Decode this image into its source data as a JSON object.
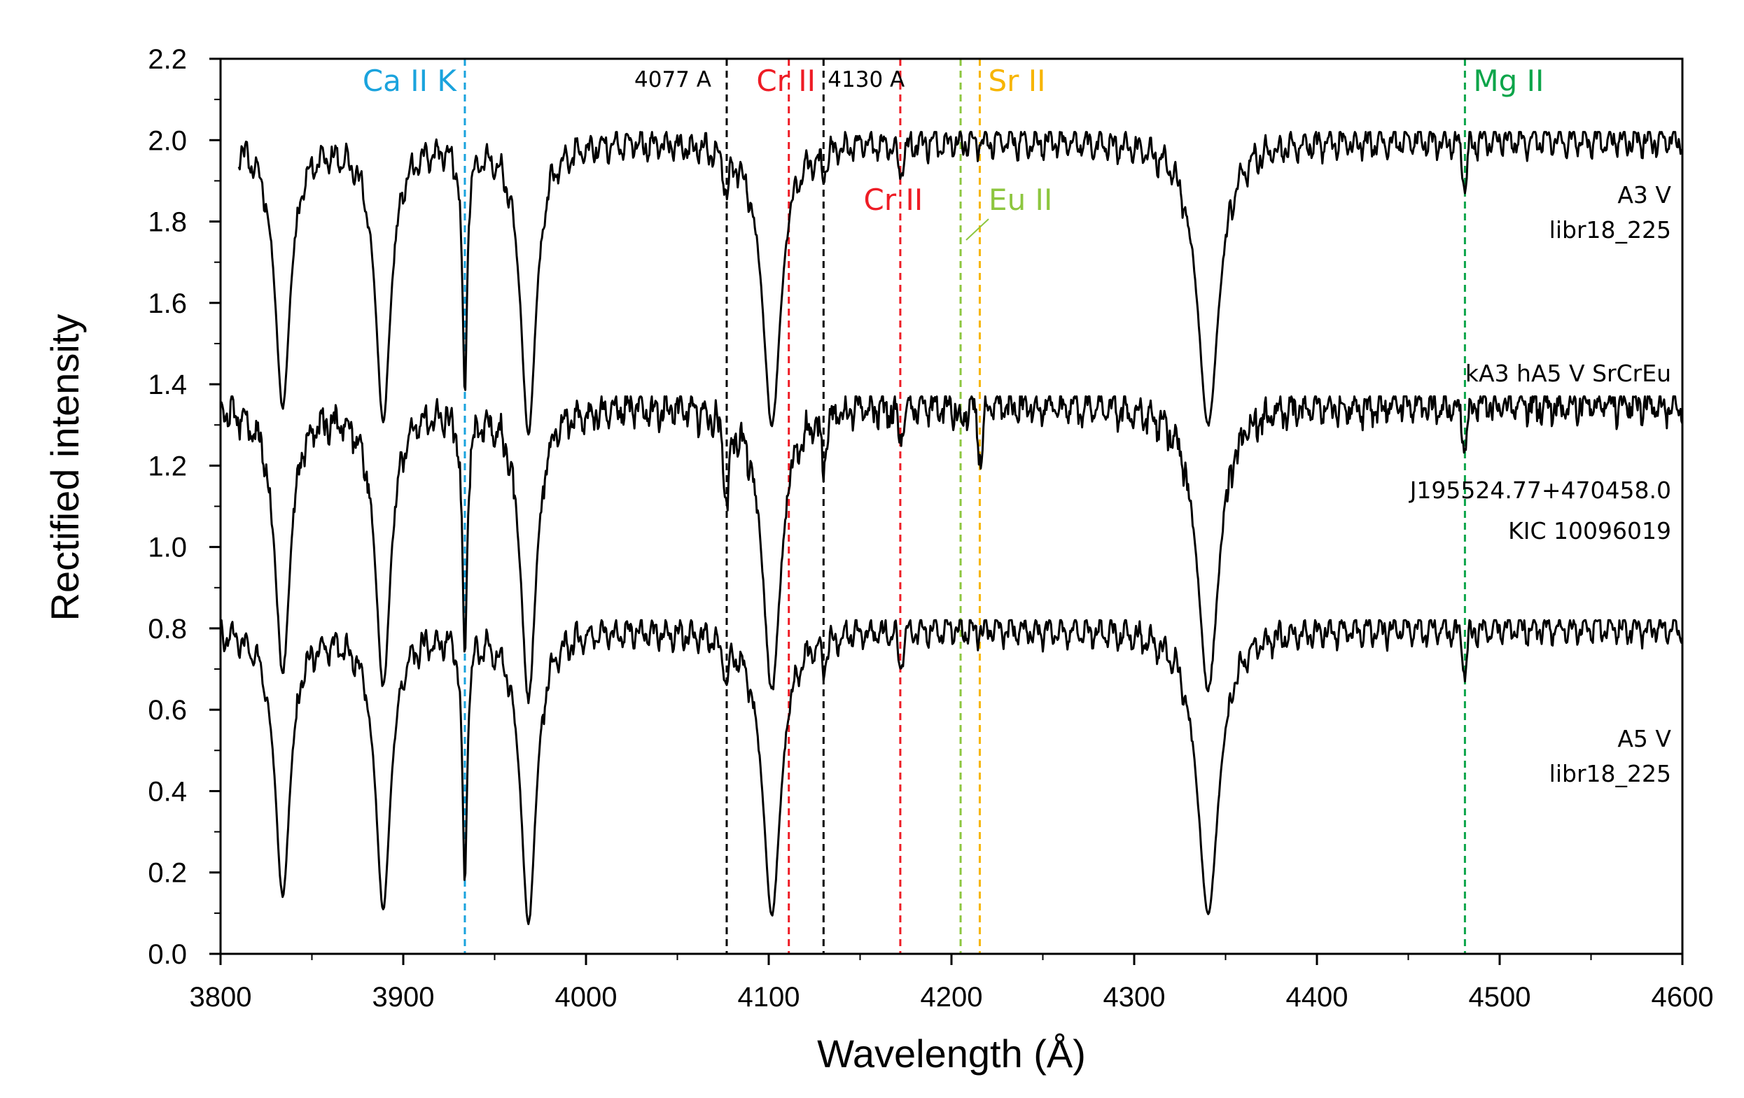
{
  "chart_data": {
    "type": "line",
    "xlabel": "Wavelength (Å)",
    "ylabel": "Rectified intensity",
    "xlim": [
      3800,
      4600
    ],
    "ylim": [
      0.0,
      2.2
    ],
    "x_ticks": [
      3800,
      3900,
      4000,
      4100,
      4200,
      4300,
      4400,
      4500,
      4600
    ],
    "x_tick_labels": [
      "3800",
      "3900",
      "4000",
      "4100",
      "4200",
      "4300",
      "4400",
      "4500",
      "4600"
    ],
    "y_ticks": [
      0.0,
      0.2,
      0.4,
      0.6,
      0.8,
      1.0,
      1.2,
      1.4,
      1.6,
      1.8,
      2.0,
      2.2
    ],
    "y_tick_labels": [
      "0.0",
      "0.2",
      "0.4",
      "0.6",
      "0.8",
      "1.0",
      "1.2",
      "1.4",
      "1.6",
      "1.8",
      "2.0",
      "2.2"
    ],
    "series": [
      {
        "name": "A3 V libr18_225",
        "offset": 1.2,
        "start": 3810
      },
      {
        "name": "kA3 hA5 V SrCrEu J195524.77+470458.0 KIC 10096019",
        "offset": 0.55,
        "start": 3800
      },
      {
        "name": "A5 V libr18_225",
        "offset": 0.0,
        "start": 3800
      }
    ],
    "absorption_lines": [
      {
        "center": 3834,
        "depth": 0.65,
        "width": 5
      },
      {
        "center": 3889,
        "depth": 0.68,
        "width": 5
      },
      {
        "center": 3933.7,
        "depth": 0.6,
        "width": 1.5
      },
      {
        "center": 3968.5,
        "depth": 0.72,
        "width": 5
      },
      {
        "center": 4101.7,
        "depth": 0.7,
        "width": 6
      },
      {
        "center": 4340.5,
        "depth": 0.7,
        "width": 7
      },
      {
        "center": 4481,
        "depth": 0.12,
        "width": 1.2
      },
      {
        "center": 4077,
        "depth": 0.1,
        "width": 1.5
      },
      {
        "center": 4130,
        "depth": 0.06,
        "width": 1.5
      },
      {
        "center": 4172,
        "depth": 0.08,
        "width": 1.5
      }
    ],
    "peculiar_lines": [
      {
        "center": 4077,
        "depth": 0.12,
        "width": 1.5
      },
      {
        "center": 4216,
        "depth": 0.14,
        "width": 1.3
      },
      {
        "center": 4205,
        "depth": 0.05,
        "width": 1.5
      },
      {
        "center": 4130,
        "depth": 0.05,
        "width": 1.5
      }
    ],
    "vertical_lines": [
      {
        "x": 3933.7,
        "label": "Ca II K",
        "color": "#1aa3dd"
      },
      {
        "x": 4077,
        "label": "4077 A",
        "color": "#000000"
      },
      {
        "x": 4111,
        "label": "Cr II",
        "color": "#ee1c25"
      },
      {
        "x": 4130,
        "label": "4130 A",
        "color": "#000000"
      },
      {
        "x": 4172,
        "label": "Cr II",
        "color": "#ee1c25"
      },
      {
        "x": 4205,
        "label": "Eu II",
        "color": "#8dc63f"
      },
      {
        "x": 4215.5,
        "label": "Sr II",
        "color": "#f7b500"
      },
      {
        "x": 4481,
        "label": "Mg II",
        "color": "#0ca54a"
      }
    ],
    "star_labels": {
      "top": [
        "A3 V",
        "libr18_225"
      ],
      "middle": [
        "kA3 hA5 V SrCrEu",
        "J195524.77+470458.0",
        "KIC 10096019"
      ],
      "bottom": [
        "A5 V",
        "libr18_225"
      ]
    },
    "colors": {
      "spectrum": "#000000",
      "axis": "#000000"
    }
  }
}
